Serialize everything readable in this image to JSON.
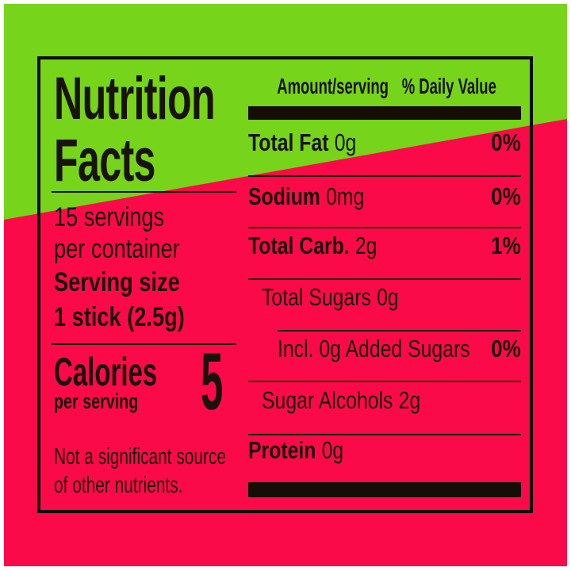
{
  "colors": {
    "green": "#76D41A",
    "pink": "#FA0A48",
    "ink": "#1a120c"
  },
  "label": {
    "title": {
      "line1": "Nutrition",
      "line2": "Facts"
    },
    "servings": {
      "line1": "15 servings",
      "line2": "per container"
    },
    "serving_size": {
      "label": "Serving size",
      "value": "1 stick (2.5g)"
    },
    "calories": {
      "label": "Calories",
      "sublabel": "per serving",
      "value": "5"
    },
    "footnote": {
      "line1": "Not a significant source",
      "line2": "of other nutrients."
    },
    "columns": {
      "amount": "Amount/serving",
      "daily_value": "% Daily Value"
    },
    "rows": [
      {
        "name": "Total Fat",
        "value": "0g",
        "dv": "0%"
      },
      {
        "name": "Sodium",
        "value": "0mg",
        "dv": "0%"
      },
      {
        "name": "Total Carb.",
        "value": "2g",
        "dv": "1%"
      },
      {
        "name": "Total Sugars",
        "value": "0g",
        "dv": ""
      },
      {
        "name": "Incl. 0g Added Sugars",
        "value": "",
        "dv": "0%"
      },
      {
        "name": "Sugar Alcohols",
        "value": "2g",
        "dv": ""
      },
      {
        "name": "Protein",
        "value": "0g",
        "dv": ""
      }
    ]
  }
}
